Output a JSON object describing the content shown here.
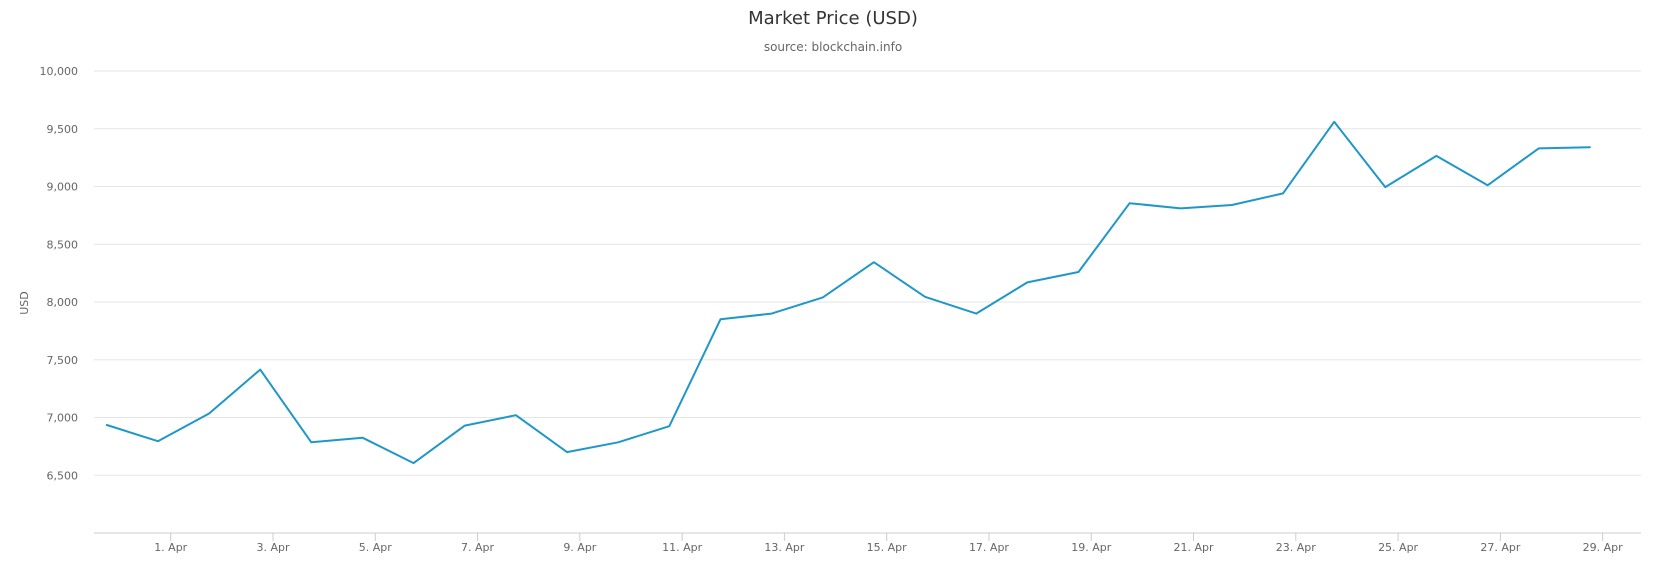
{
  "chart_data": {
    "type": "line",
    "title": "Market Price (USD)",
    "subtitle": "source: blockchain.info",
    "ylabel": "USD",
    "xlabel": "",
    "ylim": [
      6000,
      10000
    ],
    "y_ticks": [
      6500,
      7000,
      7500,
      8000,
      8500,
      9000,
      9500,
      10000
    ],
    "y_tick_labels": [
      "6,500",
      "7,000",
      "7,500",
      "8,000",
      "8,500",
      "9,000",
      "9,500",
      "10,000"
    ],
    "x_range": [
      "2018-03-30T12:00",
      "2018-04-29T18:00"
    ],
    "x_ticks": [
      "2018-04-01",
      "2018-04-03",
      "2018-04-05",
      "2018-04-07",
      "2018-04-09",
      "2018-04-11",
      "2018-04-13",
      "2018-04-15",
      "2018-04-17",
      "2018-04-19",
      "2018-04-21",
      "2018-04-23",
      "2018-04-25",
      "2018-04-27",
      "2018-04-29"
    ],
    "x_tick_labels": [
      "1. Apr",
      "3. Apr",
      "5. Apr",
      "7. Apr",
      "9. Apr",
      "11. Apr",
      "13. Apr",
      "15. Apr",
      "17. Apr",
      "19. Apr",
      "21. Apr",
      "23. Apr",
      "25. Apr",
      "27. Apr",
      "29. Apr"
    ],
    "grid": true,
    "legend": "none",
    "series": [
      {
        "color": "#1f97c9",
        "x": [
          "2018-03-30T18:00",
          "2018-03-31T18:00",
          "2018-04-01T18:00",
          "2018-04-02T18:00",
          "2018-04-03T18:00",
          "2018-04-04T18:00",
          "2018-04-05T18:00",
          "2018-04-06T18:00",
          "2018-04-07T18:00",
          "2018-04-08T18:00",
          "2018-04-09T18:00",
          "2018-04-10T18:00",
          "2018-04-11T18:00",
          "2018-04-12T18:00",
          "2018-04-13T18:00",
          "2018-04-14T18:00",
          "2018-04-15T18:00",
          "2018-04-16T18:00",
          "2018-04-17T18:00",
          "2018-04-18T18:00",
          "2018-04-19T18:00",
          "2018-04-20T18:00",
          "2018-04-21T18:00",
          "2018-04-22T18:00",
          "2018-04-23T18:00",
          "2018-04-24T18:00",
          "2018-04-25T18:00",
          "2018-04-26T18:00",
          "2018-04-27T18:00",
          "2018-04-28T18:00"
        ],
        "values": [
          6935,
          6795,
          7035,
          7415,
          6785,
          6825,
          6605,
          6930,
          7020,
          6700,
          6785,
          6925,
          7850,
          7900,
          8040,
          8345,
          8045,
          7900,
          8170,
          8260,
          8855,
          8810,
          8840,
          8940,
          9560,
          8995,
          9265,
          9010,
          9330,
          9340
        ]
      }
    ]
  }
}
